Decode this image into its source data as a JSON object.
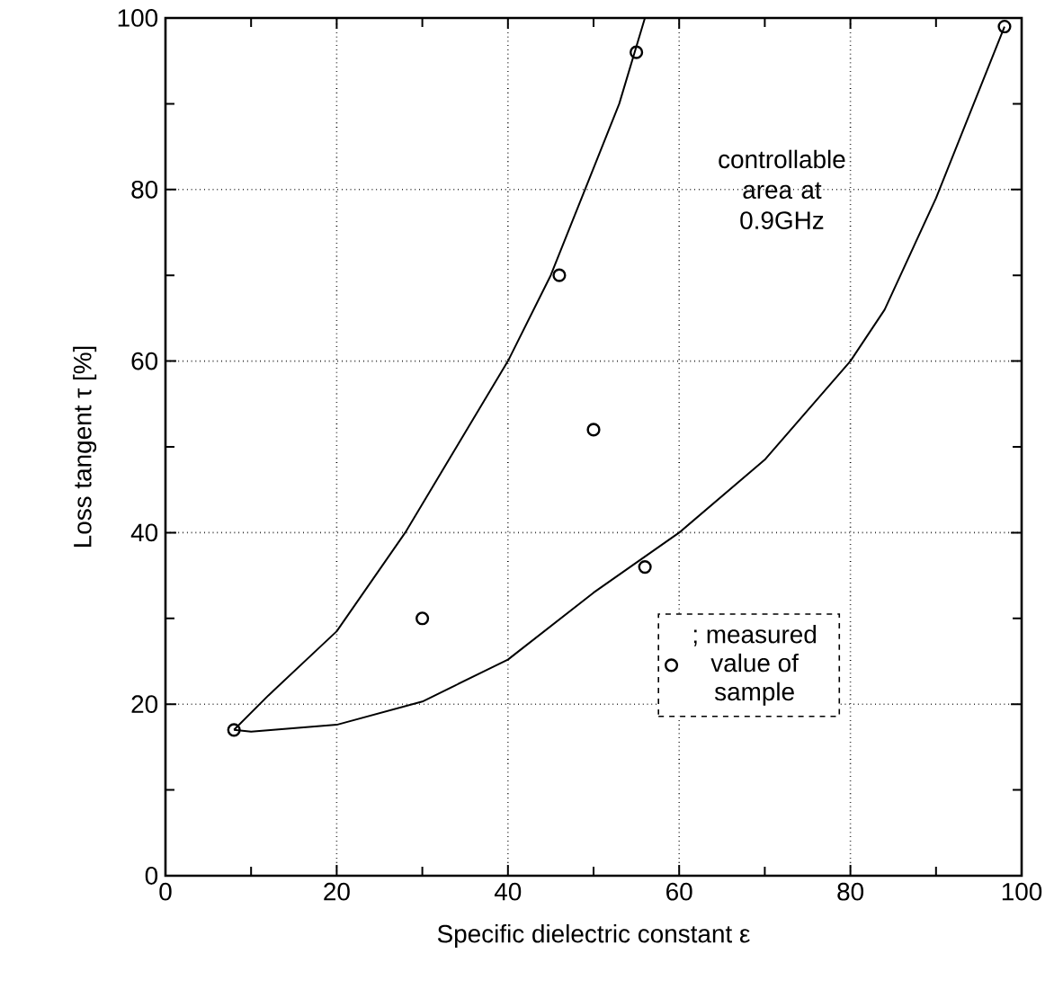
{
  "chart_data": {
    "type": "scatter",
    "xlabel": "Specific dielectric constant ε",
    "ylabel": "Loss tangent  τ [%]",
    "xlim": [
      0,
      100
    ],
    "ylim": [
      0,
      100
    ],
    "xticks": [
      0,
      20,
      40,
      60,
      80,
      100
    ],
    "yticks": [
      0,
      20,
      40,
      60,
      80,
      100
    ],
    "grid": true,
    "legend": "bottom right",
    "marker": "circle",
    "annotations": [
      "controllable area at 0.9GHz"
    ],
    "series": [
      {
        "name": "; measured value of sample",
        "color": "#000000",
        "x": [
          8,
          30,
          46,
          50,
          55,
          56,
          98
        ],
        "values": [
          17,
          30,
          70,
          52,
          96,
          36,
          99
        ]
      },
      {
        "type": "line",
        "color": "#000000",
        "marker": "none",
        "x": [
          8,
          12,
          20,
          28,
          34,
          40,
          45,
          49,
          53,
          56
        ],
        "values": [
          17,
          21,
          28.5,
          40,
          50,
          60,
          70,
          80,
          90,
          100
        ]
      },
      {
        "type": "line",
        "color": "#000000",
        "marker": "none",
        "x": [
          8,
          10,
          20,
          30,
          40,
          50,
          60,
          70,
          80,
          84,
          90,
          98
        ],
        "values": [
          17,
          16.8,
          17.6,
          20.3,
          25.2,
          33,
          40,
          48.5,
          60,
          66,
          79,
          99
        ]
      }
    ]
  }
}
